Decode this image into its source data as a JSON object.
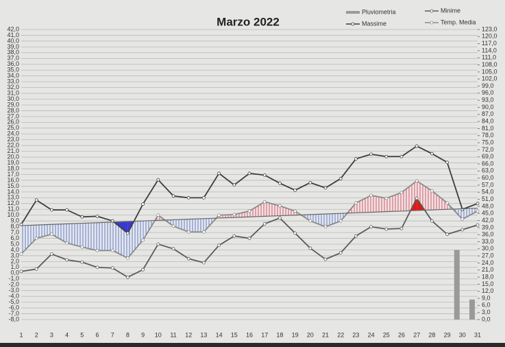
{
  "chart_data": {
    "type": "line",
    "title": "Marzo 2022",
    "categories": [
      "1",
      "2",
      "3",
      "4",
      "5",
      "6",
      "7",
      "8",
      "9",
      "10",
      "11",
      "12",
      "13",
      "14",
      "15",
      "16",
      "17",
      "18",
      "19",
      "20",
      "21",
      "22",
      "23",
      "24",
      "25",
      "26",
      "27",
      "28",
      "29",
      "30",
      "31"
    ],
    "ylim": [
      -8,
      42
    ],
    "yticks": [
      {
        "value": -8,
        "label": "-8,0"
      },
      {
        "value": -7,
        "label": "-7,0"
      },
      {
        "value": -6,
        "label": "-6,0"
      },
      {
        "value": -5,
        "label": "-5,0"
      },
      {
        "value": -4,
        "label": "-4,0"
      },
      {
        "value": -3,
        "label": "-3,0"
      },
      {
        "value": -2,
        "label": "-2,0"
      },
      {
        "value": -1,
        "label": "-1,0"
      },
      {
        "value": 0,
        "label": "0,0"
      },
      {
        "value": 1,
        "label": "1,0"
      },
      {
        "value": 2,
        "label": "2,0"
      },
      {
        "value": 3,
        "label": "3,0"
      },
      {
        "value": 4,
        "label": "4,0"
      },
      {
        "value": 5,
        "label": "5,0"
      },
      {
        "value": 6,
        "label": "6,0"
      },
      {
        "value": 7,
        "label": "7,0"
      },
      {
        "value": 8,
        "label": "8,0"
      },
      {
        "value": 9,
        "label": "9,0"
      },
      {
        "value": 10,
        "label": "10,0"
      },
      {
        "value": 11,
        "label": "11,0"
      },
      {
        "value": 12,
        "label": "12,0"
      },
      {
        "value": 13,
        "label": "13,0"
      },
      {
        "value": 14,
        "label": "14,0"
      },
      {
        "value": 15,
        "label": "15,0"
      },
      {
        "value": 16,
        "label": "16,0"
      },
      {
        "value": 17,
        "label": "17,0"
      },
      {
        "value": 18,
        "label": "18,0"
      },
      {
        "value": 19,
        "label": "19,0"
      },
      {
        "value": 20,
        "label": "20,0"
      },
      {
        "value": 21,
        "label": "21,0"
      },
      {
        "value": 22,
        "label": "22,0"
      },
      {
        "value": 23,
        "label": "23,0"
      },
      {
        "value": 24,
        "label": "24,0"
      },
      {
        "value": 25,
        "label": "25,0"
      },
      {
        "value": 26,
        "label": "26,0"
      },
      {
        "value": 27,
        "label": "27,0"
      },
      {
        "value": 28,
        "label": "28,0"
      },
      {
        "value": 29,
        "label": "29,0"
      },
      {
        "value": 30,
        "label": "30,0"
      },
      {
        "value": 31,
        "label": "31,0"
      },
      {
        "value": 32,
        "label": "32,0"
      },
      {
        "value": 33,
        "label": "33,0"
      },
      {
        "value": 34,
        "label": "34,0"
      },
      {
        "value": 35,
        "label": "35,0"
      },
      {
        "value": 36,
        "label": "36,0"
      },
      {
        "value": 37,
        "label": "37,0"
      },
      {
        "value": 38,
        "label": "38,0"
      },
      {
        "value": 39,
        "label": "39,0"
      },
      {
        "value": 40,
        "label": "40,0"
      },
      {
        "value": 41,
        "label": "41,0"
      },
      {
        "value": 42,
        "label": "42,0"
      }
    ],
    "y2lim": [
      0,
      123
    ],
    "y2ticks": [
      {
        "value": 0,
        "label": "0,0"
      },
      {
        "value": 3,
        "label": "3,0"
      },
      {
        "value": 6,
        "label": "6,0"
      },
      {
        "value": 9,
        "label": "9,0"
      },
      {
        "value": 12,
        "label": "12,0"
      },
      {
        "value": 15,
        "label": "15,0"
      },
      {
        "value": 18,
        "label": "18,0"
      },
      {
        "value": 21,
        "label": "21,0"
      },
      {
        "value": 24,
        "label": "24,0"
      },
      {
        "value": 27,
        "label": "27,0"
      },
      {
        "value": 30,
        "label": "30,0"
      },
      {
        "value": 33,
        "label": "33,0"
      },
      {
        "value": 36,
        "label": "36,0"
      },
      {
        "value": 39,
        "label": "39,0"
      },
      {
        "value": 42,
        "label": "42,0"
      },
      {
        "value": 45,
        "label": "45,0"
      },
      {
        "value": 48,
        "label": "48,0"
      },
      {
        "value": 51,
        "label": "51,0"
      },
      {
        "value": 54,
        "label": "54,0"
      },
      {
        "value": 57,
        "label": "57,0"
      },
      {
        "value": 60,
        "label": "60,0"
      },
      {
        "value": 63,
        "label": "63,0"
      },
      {
        "value": 66,
        "label": "66,0"
      },
      {
        "value": 69,
        "label": "69,0"
      },
      {
        "value": 72,
        "label": "72,0"
      },
      {
        "value": 75,
        "label": "75,0"
      },
      {
        "value": 78,
        "label": "78,0"
      },
      {
        "value": 81,
        "label": "81,0"
      },
      {
        "value": 84,
        "label": "84,0"
      },
      {
        "value": 87,
        "label": "87,0"
      },
      {
        "value": 90,
        "label": "90,0"
      },
      {
        "value": 93,
        "label": "93,0"
      },
      {
        "value": 96,
        "label": "96,0"
      },
      {
        "value": 99,
        "label": "99,0"
      },
      {
        "value": 102,
        "label": "102,0"
      },
      {
        "value": 105,
        "label": "105,0"
      },
      {
        "value": 108,
        "label": "108,0"
      },
      {
        "value": 111,
        "label": "111,0"
      },
      {
        "value": 114,
        "label": "114,0"
      },
      {
        "value": 117,
        "label": "117,0"
      },
      {
        "value": 120,
        "label": "120,0"
      },
      {
        "value": 123,
        "label": "123,0"
      }
    ],
    "grid": true,
    "legend": "top-right",
    "series": [
      {
        "name": "Pluviometria",
        "type": "bar",
        "axis": "y2",
        "color": "#9a9a9a",
        "values": [
          0,
          0,
          0,
          0,
          0,
          0,
          0,
          0,
          0,
          0,
          0,
          0,
          0,
          0,
          0,
          0,
          0,
          0,
          0,
          0,
          0,
          0,
          0,
          0,
          0,
          0,
          0,
          0,
          0,
          29.5,
          8.5
        ]
      },
      {
        "name": "Minime",
        "color": "#5a5a5a",
        "values": [
          0.3,
          0.7,
          3.3,
          2.3,
          1.9,
          1.0,
          0.9,
          -0.7,
          0.6,
          5.0,
          4.2,
          2.5,
          1.8,
          4.8,
          6.4,
          6.0,
          8.5,
          9.5,
          6.9,
          4.3,
          2.4,
          3.5,
          6.4,
          8.0,
          7.6,
          7.7,
          12.9,
          9.0,
          6.7,
          7.5,
          8.3
        ]
      },
      {
        "name": "Massime",
        "color": "#3c3c3c",
        "values": [
          8.4,
          12.6,
          10.9,
          10.9,
          9.7,
          9.8,
          9.0,
          6.9,
          11.9,
          16.1,
          13.3,
          13.0,
          13.0,
          17.2,
          15.2,
          17.2,
          16.9,
          15.5,
          14.3,
          15.6,
          14.7,
          16.3,
          19.7,
          20.5,
          20.1,
          20.1,
          21.9,
          20.6,
          19.1,
          11.0,
          12.0
        ]
      },
      {
        "name": "Temp. Media",
        "color": "#8a8a8a",
        "values": [
          3.3,
          6.0,
          6.7,
          5.2,
          4.5,
          3.9,
          3.9,
          2.6,
          5.7,
          10.0,
          8.1,
          7.1,
          7.1,
          10.0,
          10.1,
          10.7,
          12.3,
          11.6,
          10.7,
          9.0,
          8.0,
          9.0,
          12.1,
          13.4,
          12.9,
          13.9,
          15.9,
          14.2,
          12.1,
          9.3,
          10.7
        ]
      },
      {
        "color": "#666666",
        "values": [
          8.2,
          8.3,
          8.4,
          8.5,
          8.6,
          8.7,
          8.8,
          8.9,
          9.0,
          9.1,
          9.2,
          9.3,
          9.4,
          9.5,
          9.6,
          9.7,
          9.8,
          9.9,
          10.0,
          10.1,
          10.2,
          10.3,
          10.4,
          10.5,
          10.6,
          10.7,
          10.8,
          10.9,
          11.0,
          11.1,
          11.2
        ]
      }
    ]
  }
}
